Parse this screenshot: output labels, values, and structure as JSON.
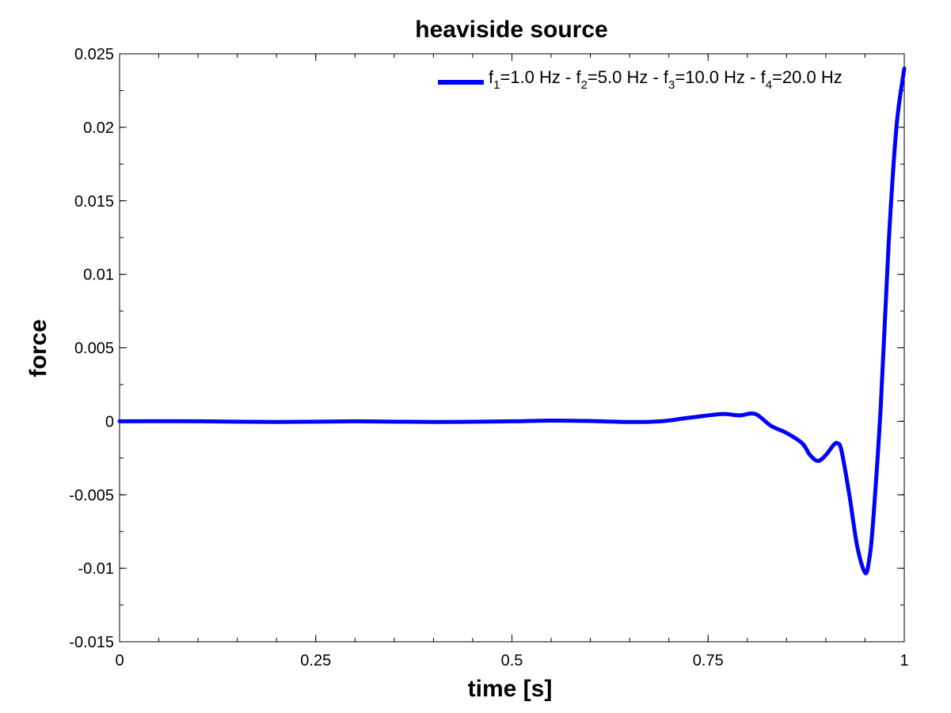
{
  "chart_data": {
    "type": "line",
    "title": "heaviside source",
    "xlabel": "time [s]",
    "ylabel": "force",
    "xlim": [
      0,
      1
    ],
    "ylim": [
      -0.015,
      0.025
    ],
    "xticks": [
      0,
      0.25,
      0.5,
      0.75,
      1
    ],
    "xtick_labels": [
      "0",
      "0.25",
      "0.5",
      "0.75",
      "1"
    ],
    "yticks": [
      -0.015,
      -0.01,
      -0.005,
      0,
      0.005,
      0.01,
      0.015,
      0.02,
      0.025
    ],
    "ytick_labels": [
      "-0.015",
      "-0.01",
      "-0.005",
      "0",
      "0.005",
      "0.01",
      "0.015",
      "0.02",
      "0.025"
    ],
    "grid": false,
    "legend_position": "top-right",
    "line_color": "#0000ff",
    "legend": {
      "parts": [
        {
          "main": "f",
          "sub": "1",
          "rest": "=1.0 Hz - "
        },
        {
          "main": "f",
          "sub": "2",
          "rest": "=5.0 Hz - "
        },
        {
          "main": "f",
          "sub": "3",
          "rest": "=10.0 Hz - "
        },
        {
          "main": "f",
          "sub": "4",
          "rest": "=20.0 Hz"
        }
      ]
    },
    "series": [
      {
        "name": "f1=1.0 Hz - f2=5.0 Hz - f3=10.0 Hz - f4=20.0 Hz",
        "x": [
          0,
          0.1,
          0.2,
          0.3,
          0.4,
          0.5,
          0.55,
          0.6,
          0.65,
          0.69,
          0.72,
          0.75,
          0.77,
          0.79,
          0.81,
          0.83,
          0.85,
          0.87,
          0.88,
          0.89,
          0.9,
          0.91,
          0.915,
          0.92,
          0.93,
          0.94,
          0.95,
          0.955,
          0.96,
          0.97,
          0.98,
          0.99,
          1.0
        ],
        "y": [
          0,
          0,
          -5e-05,
          0,
          -5e-05,
          0,
          5e-05,
          2e-05,
          -5e-05,
          0,
          0.0002,
          0.0004,
          0.0005,
          0.0004,
          0.0005,
          -0.0003,
          -0.0008,
          -0.0015,
          -0.0023,
          -0.0027,
          -0.0023,
          -0.0016,
          -0.0015,
          -0.002,
          -0.005,
          -0.0085,
          -0.0103,
          -0.0095,
          -0.007,
          0.001,
          0.012,
          0.02,
          0.024
        ]
      }
    ]
  }
}
